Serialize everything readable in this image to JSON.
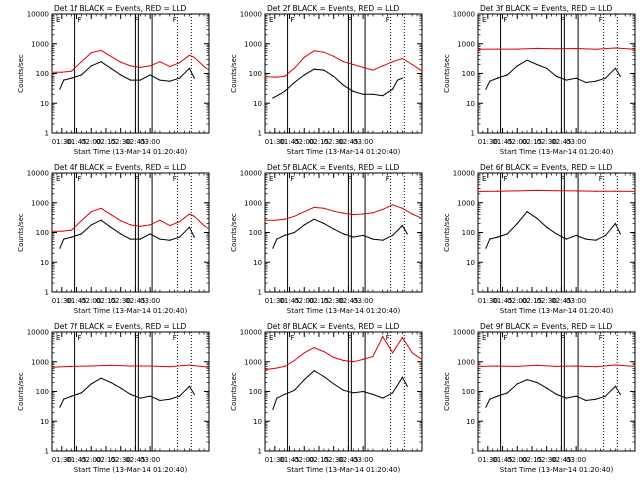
{
  "colors": {
    "events": "#000000",
    "lld": "#e00000",
    "background": "#ffffff",
    "axes": "#000000"
  },
  "shared": {
    "xlabel": "Start Time (13-Mar-14 01:20:40)",
    "ylabel": "Counts/sec",
    "x_ticks": [
      "01:30",
      "01:45",
      "02:00",
      "02:15",
      "02:30",
      "02:45",
      "03:00"
    ],
    "y_ticks": [
      "1",
      "10",
      "100",
      "1000",
      "10000"
    ],
    "x_range_minutes": [
      20,
      180
    ],
    "ylim": [
      1,
      10000
    ],
    "marker_letters": [
      "E",
      "F",
      "F",
      "F"
    ]
  },
  "chart_data": [
    {
      "type": "line",
      "title": "Det 1f BLACK = Events, RED = LLD",
      "xlabel": "Start Time (13-Mar-14 01:20:40)",
      "ylabel": "Counts/sec",
      "ylim": [
        1,
        10000
      ],
      "series": [
        {
          "name": "LLD",
          "color": "red",
          "x": [
            20,
            30,
            40,
            50,
            60,
            70,
            80,
            90,
            100,
            110,
            120,
            130,
            140,
            150,
            160,
            165,
            175,
            180
          ],
          "y": [
            110,
            110,
            120,
            250,
            500,
            600,
            380,
            240,
            180,
            160,
            180,
            250,
            170,
            230,
            410,
            350,
            170,
            130
          ]
        },
        {
          "name": "Events",
          "color": "black",
          "x": [
            28,
            32,
            40,
            50,
            60,
            70,
            80,
            90,
            100,
            110,
            120,
            130,
            140,
            150,
            160,
            165
          ],
          "y": [
            30,
            60,
            70,
            90,
            180,
            250,
            150,
            90,
            60,
            60,
            90,
            60,
            55,
            70,
            150,
            70
          ]
        }
      ]
    },
    {
      "type": "line",
      "title": "Det 2f BLACK = Events, RED = LLD",
      "xlabel": "Start Time (13-Mar-14 01:20:40)",
      "ylabel": "Counts/sec",
      "ylim": [
        1,
        10000
      ],
      "series": [
        {
          "name": "LLD",
          "color": "red",
          "x": [
            20,
            30,
            40,
            50,
            60,
            70,
            80,
            90,
            100,
            110,
            120,
            130,
            140,
            150,
            160,
            170,
            180
          ],
          "y": [
            80,
            75,
            80,
            150,
            350,
            580,
            520,
            380,
            250,
            200,
            160,
            130,
            180,
            250,
            320,
            200,
            120
          ]
        },
        {
          "name": "Events",
          "color": "black",
          "x": [
            28,
            35,
            40,
            50,
            60,
            70,
            80,
            90,
            100,
            110,
            120,
            130,
            140,
            150,
            155,
            160
          ],
          "y": [
            15,
            20,
            25,
            50,
            90,
            140,
            130,
            80,
            40,
            25,
            20,
            20,
            18,
            30,
            60,
            70
          ]
        }
      ]
    },
    {
      "type": "line",
      "title": "Det 3f BLACK = Events, RED = LLD",
      "xlabel": "Start Time (13-Mar-14 01:20:40)",
      "ylabel": "Counts/sec",
      "ylim": [
        1,
        10000
      ],
      "series": [
        {
          "name": "LLD",
          "color": "red",
          "x": [
            20,
            40,
            60,
            80,
            100,
            120,
            140,
            160,
            180
          ],
          "y": [
            650,
            660,
            660,
            700,
            680,
            690,
            650,
            720,
            650
          ]
        },
        {
          "name": "Events",
          "color": "black",
          "x": [
            28,
            32,
            40,
            50,
            60,
            70,
            80,
            90,
            100,
            110,
            120,
            130,
            140,
            150,
            160,
            165
          ],
          "y": [
            30,
            55,
            70,
            90,
            180,
            280,
            200,
            150,
            80,
            60,
            70,
            50,
            55,
            70,
            150,
            80
          ]
        }
      ]
    },
    {
      "type": "line",
      "title": "Det 4f BLACK = Events, RED = LLD",
      "xlabel": "Start Time (13-Mar-14 01:20:40)",
      "ylabel": "Counts/sec",
      "ylim": [
        1,
        10000
      ],
      "series": [
        {
          "name": "LLD",
          "color": "red",
          "x": [
            20,
            30,
            40,
            50,
            60,
            70,
            80,
            90,
            100,
            110,
            120,
            130,
            140,
            150,
            160,
            165,
            175,
            180
          ],
          "y": [
            110,
            110,
            120,
            250,
            500,
            650,
            400,
            250,
            180,
            160,
            180,
            260,
            170,
            230,
            420,
            350,
            170,
            130
          ]
        },
        {
          "name": "Events",
          "color": "black",
          "x": [
            28,
            32,
            40,
            50,
            60,
            70,
            80,
            90,
            100,
            110,
            120,
            130,
            140,
            150,
            160,
            165
          ],
          "y": [
            30,
            60,
            70,
            90,
            180,
            260,
            150,
            90,
            60,
            60,
            90,
            60,
            55,
            70,
            150,
            70
          ]
        }
      ]
    },
    {
      "type": "line",
      "title": "Det 5f BLACK = Events, RED = LLD",
      "xlabel": "Start Time (13-Mar-14 01:20:40)",
      "ylabel": "Counts/sec",
      "ylim": [
        1,
        10000
      ],
      "series": [
        {
          "name": "LLD",
          "color": "red",
          "x": [
            20,
            30,
            40,
            50,
            60,
            70,
            80,
            90,
            100,
            110,
            120,
            130,
            140,
            150,
            160,
            170,
            180
          ],
          "y": [
            260,
            260,
            280,
            350,
            500,
            700,
            650,
            520,
            450,
            400,
            420,
            460,
            600,
            850,
            650,
            420,
            300
          ]
        },
        {
          "name": "Events",
          "color": "black",
          "x": [
            28,
            32,
            40,
            50,
            60,
            70,
            80,
            90,
            100,
            110,
            120,
            130,
            140,
            150,
            160,
            165
          ],
          "y": [
            30,
            60,
            80,
            100,
            180,
            280,
            200,
            130,
            90,
            70,
            80,
            60,
            55,
            80,
            170,
            90
          ]
        }
      ]
    },
    {
      "type": "line",
      "title": "Det 6f BLACK = Events, RED = LLD",
      "xlabel": "Start Time (13-Mar-14 01:20:40)",
      "ylabel": "Counts/sec",
      "ylim": [
        1,
        10000
      ],
      "series": [
        {
          "name": "LLD",
          "color": "red",
          "x": [
            20,
            40,
            60,
            80,
            100,
            120,
            140,
            160,
            180
          ],
          "y": [
            2400,
            2450,
            2500,
            2600,
            2550,
            2500,
            2450,
            2450,
            2400
          ]
        },
        {
          "name": "Events",
          "color": "black",
          "x": [
            28,
            32,
            40,
            50,
            60,
            70,
            80,
            90,
            100,
            110,
            120,
            130,
            140,
            150,
            160,
            165
          ],
          "y": [
            30,
            60,
            70,
            90,
            200,
            500,
            300,
            150,
            90,
            60,
            80,
            60,
            55,
            80,
            200,
            90
          ]
        }
      ]
    },
    {
      "type": "line",
      "title": "Det 7f BLACK = Events, RED = LLD",
      "xlabel": "Start Time (13-Mar-14 01:20:40)",
      "ylabel": "Counts/sec",
      "ylim": [
        1,
        10000
      ],
      "series": [
        {
          "name": "LLD",
          "color": "red",
          "x": [
            20,
            40,
            60,
            80,
            100,
            120,
            140,
            160,
            180
          ],
          "y": [
            650,
            700,
            720,
            760,
            720,
            720,
            680,
            780,
            650
          ]
        },
        {
          "name": "Events",
          "color": "black",
          "x": [
            28,
            32,
            40,
            50,
            60,
            70,
            80,
            90,
            100,
            110,
            120,
            130,
            140,
            150,
            160,
            165
          ],
          "y": [
            30,
            55,
            70,
            90,
            180,
            280,
            200,
            130,
            80,
            60,
            70,
            50,
            55,
            70,
            150,
            80
          ]
        }
      ]
    },
    {
      "type": "line",
      "title": "Det 8f BLACK = Events, RED = LLD",
      "xlabel": "Start Time (13-Mar-14 01:20:40)",
      "ylabel": "Counts/sec",
      "ylim": [
        1,
        10000
      ],
      "series": [
        {
          "name": "LLD",
          "color": "red",
          "x": [
            20,
            30,
            40,
            50,
            60,
            70,
            80,
            90,
            100,
            110,
            120,
            130,
            140,
            150,
            160,
            170,
            180
          ],
          "y": [
            550,
            600,
            700,
            1100,
            2000,
            3000,
            2200,
            1400,
            1100,
            1000,
            1200,
            1500,
            7000,
            2000,
            6500,
            2000,
            1200
          ]
        },
        {
          "name": "Events",
          "color": "black",
          "x": [
            28,
            32,
            40,
            50,
            60,
            70,
            80,
            90,
            100,
            110,
            120,
            130,
            140,
            150,
            160,
            165
          ],
          "y": [
            25,
            60,
            80,
            110,
            250,
            500,
            320,
            180,
            110,
            90,
            100,
            80,
            60,
            90,
            300,
            150
          ]
        }
      ]
    },
    {
      "type": "line",
      "title": "Det 9f BLACK = Events, RED = LLD",
      "xlabel": "Start Time (13-Mar-14 01:20:40)",
      "ylabel": "Counts/sec",
      "ylim": [
        1,
        10000
      ],
      "series": [
        {
          "name": "LLD",
          "color": "red",
          "x": [
            20,
            40,
            60,
            80,
            100,
            120,
            140,
            160,
            180
          ],
          "y": [
            700,
            720,
            700,
            760,
            700,
            720,
            680,
            780,
            700
          ]
        },
        {
          "name": "Events",
          "color": "black",
          "x": [
            28,
            32,
            40,
            50,
            60,
            70,
            80,
            90,
            100,
            110,
            120,
            130,
            140,
            150,
            160,
            165
          ],
          "y": [
            30,
            55,
            70,
            90,
            180,
            250,
            200,
            130,
            80,
            60,
            70,
            50,
            55,
            70,
            150,
            80
          ]
        }
      ]
    }
  ]
}
